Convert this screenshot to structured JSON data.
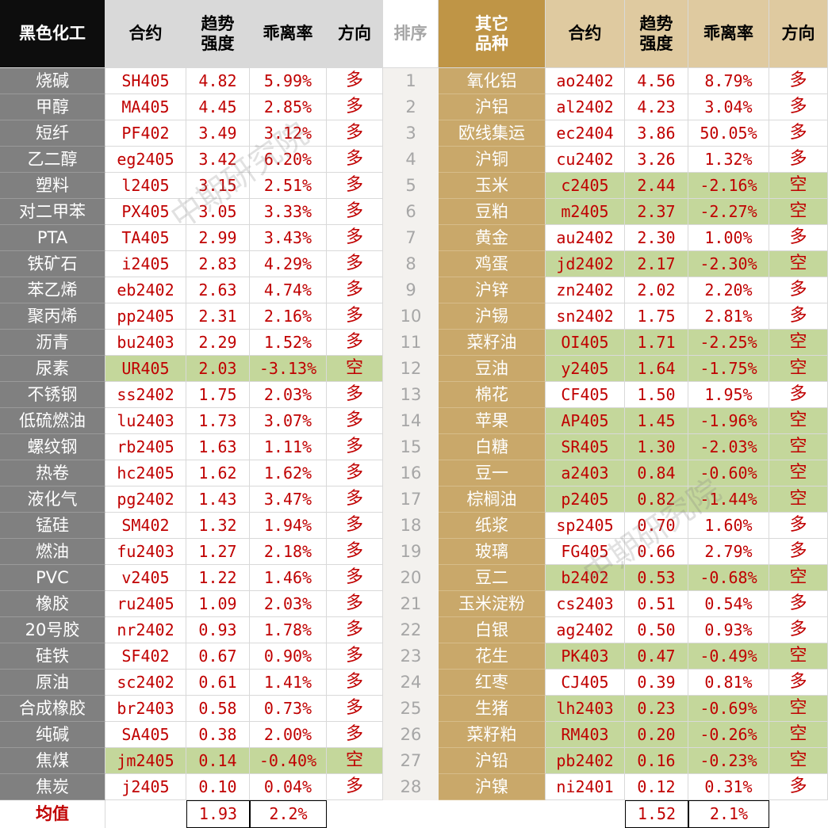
{
  "left": {
    "header": [
      "黑色化工",
      "合约",
      "趋势\n强度",
      "乖离率",
      "方向"
    ],
    "rows": [
      [
        "烧碱",
        "SH405",
        "4.82",
        "5.99%",
        "多"
      ],
      [
        "甲醇",
        "MA405",
        "4.45",
        "2.85%",
        "多"
      ],
      [
        "短纤",
        "PF402",
        "3.49",
        "3.12%",
        "多"
      ],
      [
        "乙二醇",
        "eg2405",
        "3.42",
        "6.20%",
        "多"
      ],
      [
        "塑料",
        "l2405",
        "3.15",
        "2.51%",
        "多"
      ],
      [
        "对二甲苯",
        "PX405",
        "3.05",
        "3.33%",
        "多"
      ],
      [
        "PTA",
        "TA405",
        "2.99",
        "3.43%",
        "多"
      ],
      [
        "铁矿石",
        "i2405",
        "2.83",
        "4.29%",
        "多"
      ],
      [
        "苯乙烯",
        "eb2402",
        "2.63",
        "4.74%",
        "多"
      ],
      [
        "聚丙烯",
        "pp2405",
        "2.31",
        "2.16%",
        "多"
      ],
      [
        "沥青",
        "bu2403",
        "2.29",
        "1.52%",
        "多"
      ],
      [
        "尿素",
        "UR405",
        "2.03",
        "-3.13%",
        "空"
      ],
      [
        "不锈钢",
        "ss2402",
        "1.75",
        "2.03%",
        "多"
      ],
      [
        "低硫燃油",
        "lu2403",
        "1.73",
        "3.07%",
        "多"
      ],
      [
        "螺纹钢",
        "rb2405",
        "1.63",
        "1.11%",
        "多"
      ],
      [
        "热卷",
        "hc2405",
        "1.62",
        "1.62%",
        "多"
      ],
      [
        "液化气",
        "pg2402",
        "1.43",
        "3.47%",
        "多"
      ],
      [
        "锰硅",
        "SM402",
        "1.32",
        "1.94%",
        "多"
      ],
      [
        "燃油",
        "fu2403",
        "1.27",
        "2.18%",
        "多"
      ],
      [
        "PVC",
        "v2405",
        "1.22",
        "1.46%",
        "多"
      ],
      [
        "橡胶",
        "ru2405",
        "1.09",
        "2.03%",
        "多"
      ],
      [
        "20号胶",
        "nr2402",
        "0.93",
        "1.78%",
        "多"
      ],
      [
        "硅铁",
        "SF402",
        "0.67",
        "0.90%",
        "多"
      ],
      [
        "原油",
        "sc2402",
        "0.61",
        "1.41%",
        "多"
      ],
      [
        "合成橡胶",
        "br2403",
        "0.58",
        "0.73%",
        "多"
      ],
      [
        "纯碱",
        "SA405",
        "0.38",
        "2.00%",
        "多"
      ],
      [
        "焦煤",
        "jm2405",
        "0.14",
        "-0.40%",
        "空"
      ],
      [
        "焦炭",
        "j2405",
        "0.10",
        "0.04%",
        "多"
      ]
    ]
  },
  "rank_header": "排序",
  "right": {
    "header": [
      "其它\n品种",
      "合约",
      "趋势\n强度",
      "乖离率",
      "方向"
    ],
    "rows": [
      [
        1,
        "氧化铝",
        "ao2402",
        "4.56",
        "8.79%",
        "多"
      ],
      [
        2,
        "沪铝",
        "al2402",
        "4.23",
        "3.04%",
        "多"
      ],
      [
        3,
        "欧线集运",
        "ec2404",
        "3.86",
        "50.05%",
        "多"
      ],
      [
        4,
        "沪铜",
        "cu2402",
        "3.26",
        "1.32%",
        "多"
      ],
      [
        5,
        "玉米",
        "c2405",
        "2.44",
        "-2.16%",
        "空"
      ],
      [
        6,
        "豆粕",
        "m2405",
        "2.37",
        "-2.27%",
        "空"
      ],
      [
        7,
        "黄金",
        "au2402",
        "2.30",
        "1.00%",
        "多"
      ],
      [
        8,
        "鸡蛋",
        "jd2402",
        "2.17",
        "-2.30%",
        "空"
      ],
      [
        9,
        "沪锌",
        "zn2402",
        "2.02",
        "2.20%",
        "多"
      ],
      [
        10,
        "沪锡",
        "sn2402",
        "1.75",
        "2.81%",
        "多"
      ],
      [
        11,
        "菜籽油",
        "OI405",
        "1.71",
        "-2.25%",
        "空"
      ],
      [
        12,
        "豆油",
        "y2405",
        "1.64",
        "-1.75%",
        "空"
      ],
      [
        13,
        "棉花",
        "CF405",
        "1.50",
        "1.95%",
        "多"
      ],
      [
        14,
        "苹果",
        "AP405",
        "1.45",
        "-1.96%",
        "空"
      ],
      [
        15,
        "白糖",
        "SR405",
        "1.30",
        "-2.03%",
        "空"
      ],
      [
        16,
        "豆一",
        "a2403",
        "0.84",
        "-0.60%",
        "空"
      ],
      [
        17,
        "棕榈油",
        "p2405",
        "0.82",
        "-1.44%",
        "空"
      ],
      [
        18,
        "纸浆",
        "sp2405",
        "0.70",
        "1.60%",
        "多"
      ],
      [
        19,
        "玻璃",
        "FG405",
        "0.66",
        "2.79%",
        "多"
      ],
      [
        20,
        "豆二",
        "b2402",
        "0.53",
        "-0.68%",
        "空"
      ],
      [
        21,
        "玉米淀粉",
        "cs2403",
        "0.51",
        "0.54%",
        "多"
      ],
      [
        22,
        "白银",
        "ag2402",
        "0.50",
        "0.93%",
        "多"
      ],
      [
        23,
        "花生",
        "PK403",
        "0.47",
        "-0.49%",
        "空"
      ],
      [
        24,
        "红枣",
        "CJ405",
        "0.39",
        "0.81%",
        "多"
      ],
      [
        25,
        "生猪",
        "lh2403",
        "0.23",
        "-0.69%",
        "空"
      ],
      [
        26,
        "菜籽粕",
        "RM403",
        "0.20",
        "-0.26%",
        "空"
      ],
      [
        27,
        "沪铅",
        "pb2402",
        "0.16",
        "-0.23%",
        "空"
      ],
      [
        28,
        "沪镍",
        "ni2401",
        "0.12",
        "0.31%",
        "多"
      ]
    ]
  },
  "footer": {
    "label": "均值",
    "left_avg": [
      "1.93",
      "2.2%"
    ],
    "right_avg": [
      "1.52",
      "2.1%"
    ]
  },
  "watermark": "中期研究院"
}
